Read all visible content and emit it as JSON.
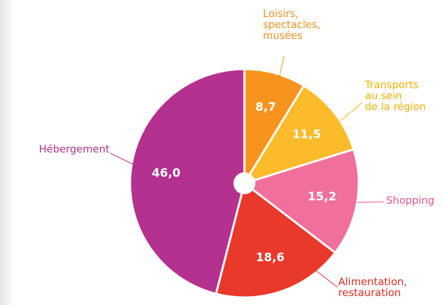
{
  "chart_data": {
    "type": "pie",
    "categories": [
      "Loisirs,\nspectacles,\nmusées",
      "Transports\nau sein\nde la région",
      "Shopping",
      "Alimentation,\nrestauration",
      "Hébergement"
    ],
    "values": [
      8.7,
      11.5,
      15.2,
      18.6,
      46.0
    ],
    "value_labels": [
      "8,7",
      "11,5",
      "15,2",
      "18,6",
      "46,0"
    ],
    "colors": [
      "#f7941d",
      "#fbbb2a",
      "#f0709b",
      "#e8392b",
      "#b5318f"
    ],
    "label_colors": [
      "#f0901e",
      "#f3b000",
      "#e8508a",
      "#e02b20",
      "#b5318f"
    ]
  }
}
